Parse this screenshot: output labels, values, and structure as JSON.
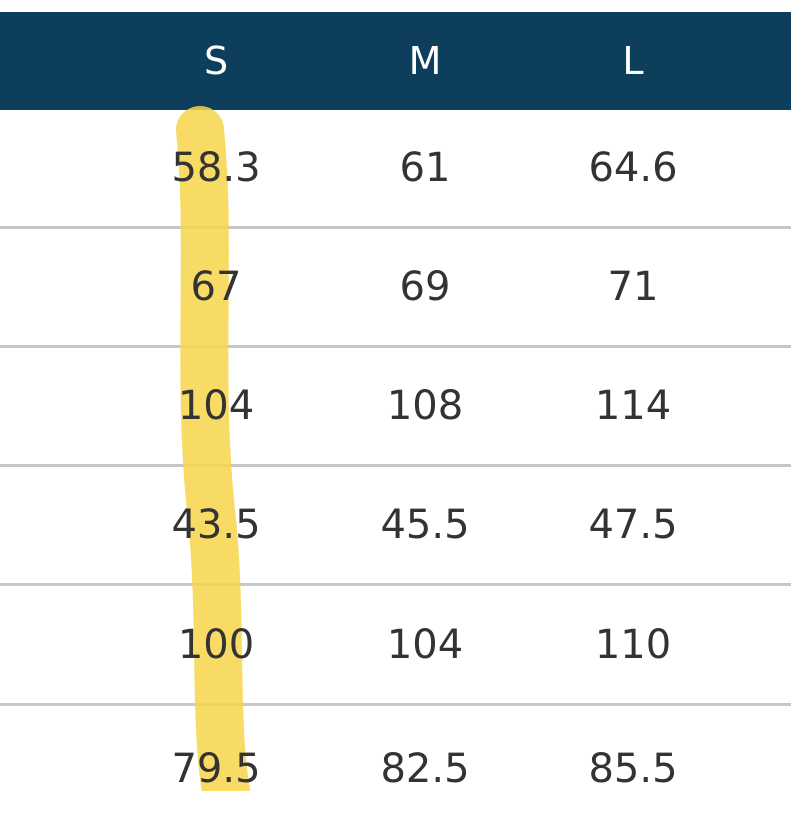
{
  "table": {
    "headers": [
      "S",
      "M",
      "L"
    ],
    "rows": [
      [
        "58.3",
        "61",
        "64.6"
      ],
      [
        "67",
        "69",
        "71"
      ],
      [
        "104",
        "108",
        "114"
      ],
      [
        "43.5",
        "45.5",
        "47.5"
      ],
      [
        "100",
        "104",
        "110"
      ],
      [
        "79.5",
        "82.5",
        "85.5"
      ]
    ]
  },
  "colors": {
    "header_bg": "#0d3f5c",
    "header_text": "#ffffff",
    "cell_text": "#333333",
    "divider": "#c7c7c7",
    "highlight": "#f7d54a"
  }
}
